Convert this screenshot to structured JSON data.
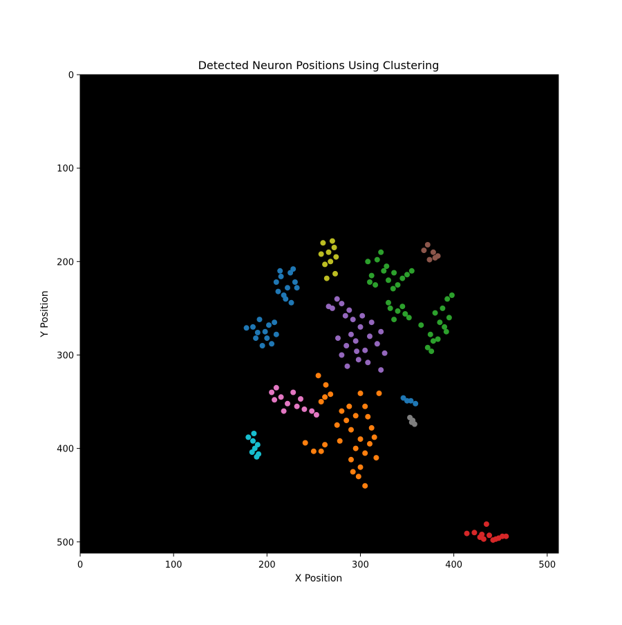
{
  "chart_data": {
    "type": "scatter",
    "title": "Detected Neuron Positions Using Clustering",
    "xlabel": "X Position",
    "ylabel": "Y Position",
    "xlim": [
      0,
      512
    ],
    "ylim": [
      512,
      0
    ],
    "y_inverted": true,
    "x_ticks": [
      0,
      100,
      200,
      300,
      400,
      500
    ],
    "y_ticks": [
      0,
      100,
      200,
      300,
      400,
      500
    ],
    "grid": false,
    "background_color": "#000000",
    "clusters": [
      {
        "color": "#1f77b4",
        "points": [
          [
            222,
            228
          ],
          [
            215,
            216
          ],
          [
            228,
            208
          ],
          [
            220,
            240
          ],
          [
            212,
            232
          ],
          [
            230,
            222
          ],
          [
            225,
            212
          ],
          [
            218,
            236
          ],
          [
            210,
            222
          ],
          [
            232,
            228
          ],
          [
            226,
            244
          ],
          [
            214,
            210
          ]
        ]
      },
      {
        "color": "#1f77b4",
        "points": [
          [
            198,
            275
          ],
          [
            192,
            262
          ],
          [
            205,
            288
          ],
          [
            188,
            282
          ],
          [
            202,
            268
          ],
          [
            210,
            278
          ],
          [
            195,
            290
          ],
          [
            185,
            270
          ],
          [
            208,
            265
          ],
          [
            200,
            282
          ],
          [
            178,
            271
          ],
          [
            190,
            276
          ]
        ]
      },
      {
        "color": "#1f77b4",
        "points": [
          [
            350,
            349
          ],
          [
            346,
            346
          ],
          [
            354,
            349
          ],
          [
            359,
            352
          ]
        ]
      },
      {
        "color": "#bcbd22",
        "points": [
          [
            266,
            190
          ],
          [
            260,
            180
          ],
          [
            272,
            185
          ],
          [
            268,
            200
          ],
          [
            258,
            192
          ],
          [
            274,
            195
          ],
          [
            262,
            203
          ],
          [
            270,
            178
          ],
          [
            264,
            218
          ],
          [
            273,
            213
          ]
        ]
      },
      {
        "color": "#2ca02c",
        "points": [
          [
            325,
            210
          ],
          [
            318,
            198
          ],
          [
            330,
            220
          ],
          [
            322,
            190
          ],
          [
            336,
            212
          ],
          [
            345,
            218
          ],
          [
            350,
            214
          ],
          [
            312,
            215
          ],
          [
            328,
            205
          ],
          [
            340,
            225
          ],
          [
            308,
            200
          ],
          [
            355,
            210
          ],
          [
            310,
            222
          ],
          [
            335,
            229
          ],
          [
            316,
            225
          ]
        ]
      },
      {
        "color": "#2ca02c",
        "points": [
          [
            340,
            253
          ],
          [
            332,
            250
          ],
          [
            348,
            256
          ],
          [
            336,
            262
          ],
          [
            345,
            248
          ],
          [
            352,
            260
          ],
          [
            330,
            244
          ]
        ]
      },
      {
        "color": "#2ca02c",
        "points": [
          [
            385,
            265
          ],
          [
            380,
            255
          ],
          [
            390,
            270
          ],
          [
            378,
            285
          ],
          [
            372,
            292
          ],
          [
            393,
            240
          ],
          [
            388,
            250
          ],
          [
            395,
            260
          ],
          [
            375,
            278
          ],
          [
            365,
            268
          ],
          [
            383,
            283
          ],
          [
            398,
            236
          ],
          [
            392,
            275
          ],
          [
            376,
            296
          ]
        ]
      },
      {
        "color": "#8c564b",
        "points": [
          [
            378,
            190
          ],
          [
            372,
            182
          ],
          [
            380,
            196
          ],
          [
            368,
            188
          ],
          [
            374,
            198
          ],
          [
            383,
            194
          ]
        ]
      },
      {
        "color": "#9467bd",
        "points": [
          [
            280,
            245
          ],
          [
            275,
            240
          ],
          [
            288,
            252
          ],
          [
            270,
            250
          ],
          [
            284,
            258
          ],
          [
            292,
            262
          ],
          [
            300,
            270
          ],
          [
            310,
            280
          ],
          [
            295,
            285
          ],
          [
            285,
            290
          ],
          [
            305,
            295
          ],
          [
            318,
            288
          ],
          [
            322,
            275
          ],
          [
            298,
            305
          ],
          [
            280,
            300
          ],
          [
            290,
            278
          ],
          [
            312,
            265
          ],
          [
            326,
            298
          ],
          [
            308,
            308
          ],
          [
            276,
            282
          ],
          [
            322,
            316
          ],
          [
            286,
            312
          ],
          [
            302,
            258
          ],
          [
            266,
            248
          ],
          [
            296,
            296
          ]
        ]
      },
      {
        "color": "#e377c2",
        "points": [
          [
            215,
            345
          ],
          [
            210,
            335
          ],
          [
            222,
            352
          ],
          [
            228,
            340
          ],
          [
            218,
            360
          ],
          [
            208,
            348
          ],
          [
            232,
            355
          ],
          [
            205,
            340
          ],
          [
            240,
            358
          ],
          [
            248,
            360
          ],
          [
            253,
            364
          ],
          [
            236,
            347
          ]
        ]
      },
      {
        "color": "#ff7f0e",
        "points": [
          [
            285,
            370
          ],
          [
            280,
            360
          ],
          [
            290,
            380
          ],
          [
            278,
            392
          ],
          [
            295,
            365
          ],
          [
            275,
            375
          ],
          [
            288,
            355
          ],
          [
            300,
            390
          ],
          [
            310,
            395
          ],
          [
            305,
            405
          ],
          [
            295,
            400
          ],
          [
            315,
            388
          ],
          [
            300,
            420
          ],
          [
            298,
            430
          ],
          [
            305,
            440
          ],
          [
            292,
            425
          ],
          [
            262,
            345
          ],
          [
            268,
            342
          ],
          [
            258,
            350
          ],
          [
            255,
            322
          ],
          [
            263,
            332
          ],
          [
            300,
            341
          ],
          [
            305,
            355
          ],
          [
            308,
            366
          ],
          [
            320,
            341
          ],
          [
            241,
            394
          ],
          [
            250,
            403
          ],
          [
            258,
            403
          ],
          [
            262,
            396
          ],
          [
            312,
            378
          ],
          [
            317,
            410
          ],
          [
            290,
            412
          ]
        ]
      },
      {
        "color": "#7f7f7f",
        "points": [
          [
            356,
            370
          ],
          [
            353,
            367
          ],
          [
            358,
            374
          ],
          [
            355,
            372
          ]
        ]
      },
      {
        "color": "#17becf",
        "points": [
          [
            185,
            392
          ],
          [
            180,
            388
          ],
          [
            190,
            396
          ],
          [
            186,
            384
          ],
          [
            184,
            404
          ],
          [
            189,
            409
          ],
          [
            191,
            406
          ],
          [
            187,
            400
          ]
        ]
      },
      {
        "color": "#d62728",
        "points": [
          [
            435,
            481
          ],
          [
            430,
            492
          ],
          [
            428,
            495
          ],
          [
            422,
            490
          ],
          [
            414,
            491
          ],
          [
            445,
            497
          ],
          [
            448,
            496
          ],
          [
            452,
            494
          ],
          [
            456,
            494
          ],
          [
            442,
            498
          ],
          [
            432,
            497
          ],
          [
            438,
            493
          ]
        ]
      }
    ]
  }
}
